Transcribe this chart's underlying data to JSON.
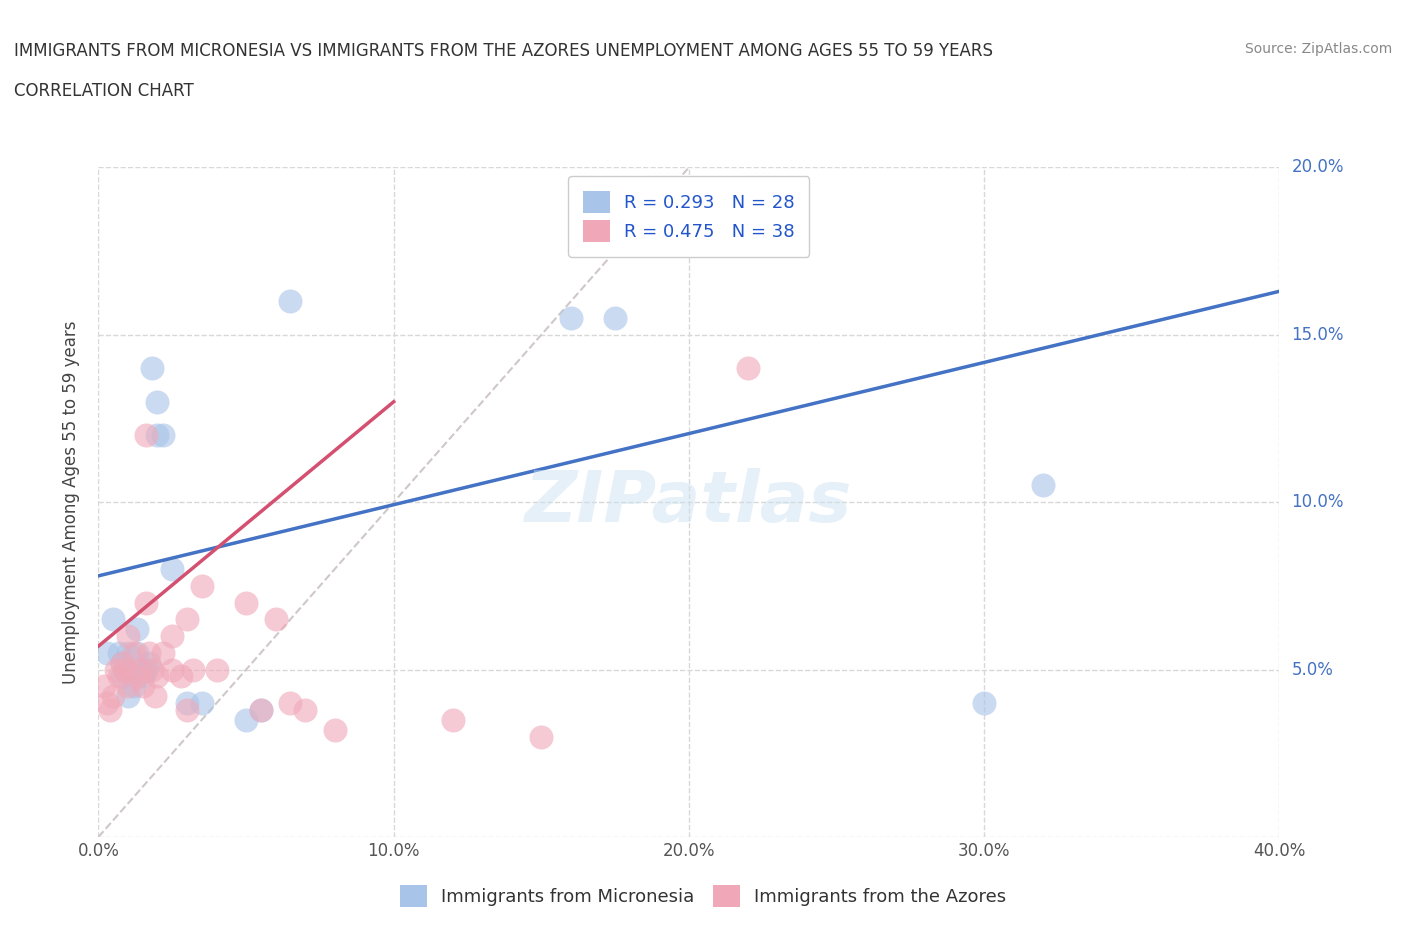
{
  "title_line1": "IMMIGRANTS FROM MICRONESIA VS IMMIGRANTS FROM THE AZORES UNEMPLOYMENT AMONG AGES 55 TO 59 YEARS",
  "title_line2": "CORRELATION CHART",
  "source": "Source: ZipAtlas.com",
  "ylabel": "Unemployment Among Ages 55 to 59 years",
  "xlim": [
    0.0,
    0.4
  ],
  "ylim": [
    0.0,
    0.2
  ],
  "xticks": [
    0.0,
    0.1,
    0.2,
    0.3,
    0.4
  ],
  "xtick_labels": [
    "0.0%",
    "10.0%",
    "20.0%",
    "30.0%",
    "40.0%"
  ],
  "yticks": [
    0.0,
    0.05,
    0.1,
    0.15,
    0.2
  ],
  "ytick_labels": [
    "",
    "5.0%",
    "10.0%",
    "15.0%",
    "20.0%"
  ],
  "micronesia_color": "#a8c4e8",
  "azores_color": "#f0a8b8",
  "micronesia_R": 0.293,
  "micronesia_N": 28,
  "azores_R": 0.475,
  "azores_N": 38,
  "trend_micronesia_color": "#4472c4",
  "trend_azores_color": "#d45070",
  "diagonal_color": "#d0c8c8",
  "watermark": "ZIPatlas",
  "micronesia_x": [
    0.003,
    0.005,
    0.007,
    0.008,
    0.008,
    0.009,
    0.01,
    0.01,
    0.012,
    0.013,
    0.013,
    0.015,
    0.016,
    0.017,
    0.018,
    0.02,
    0.02,
    0.022,
    0.025,
    0.03,
    0.035,
    0.05,
    0.055,
    0.065,
    0.16,
    0.175,
    0.3,
    0.32
  ],
  "micronesia_y": [
    0.055,
    0.065,
    0.055,
    0.052,
    0.048,
    0.05,
    0.055,
    0.042,
    0.045,
    0.055,
    0.062,
    0.048,
    0.05,
    0.052,
    0.14,
    0.13,
    0.12,
    0.12,
    0.08,
    0.04,
    0.04,
    0.035,
    0.038,
    0.16,
    0.155,
    0.155,
    0.04,
    0.105
  ],
  "azores_x": [
    0.002,
    0.003,
    0.004,
    0.005,
    0.006,
    0.007,
    0.008,
    0.009,
    0.01,
    0.01,
    0.012,
    0.013,
    0.014,
    0.015,
    0.016,
    0.016,
    0.017,
    0.018,
    0.019,
    0.02,
    0.022,
    0.025,
    0.025,
    0.028,
    0.03,
    0.03,
    0.032,
    0.035,
    0.04,
    0.05,
    0.055,
    0.06,
    0.065,
    0.07,
    0.08,
    0.12,
    0.15,
    0.22
  ],
  "azores_y": [
    0.045,
    0.04,
    0.038,
    0.042,
    0.05,
    0.048,
    0.052,
    0.05,
    0.045,
    0.06,
    0.055,
    0.048,
    0.05,
    0.045,
    0.12,
    0.07,
    0.055,
    0.05,
    0.042,
    0.048,
    0.055,
    0.06,
    0.05,
    0.048,
    0.065,
    0.038,
    0.05,
    0.075,
    0.05,
    0.07,
    0.038,
    0.065,
    0.04,
    0.038,
    0.032,
    0.035,
    0.03,
    0.14
  ],
  "trend_mic_x0": 0.0,
  "trend_mic_y0": 0.078,
  "trend_mic_x1": 0.4,
  "trend_mic_y1": 0.163,
  "trend_az_x0": 0.0,
  "trend_az_y0": 0.057,
  "trend_az_x1": 0.1,
  "trend_az_y1": 0.13
}
